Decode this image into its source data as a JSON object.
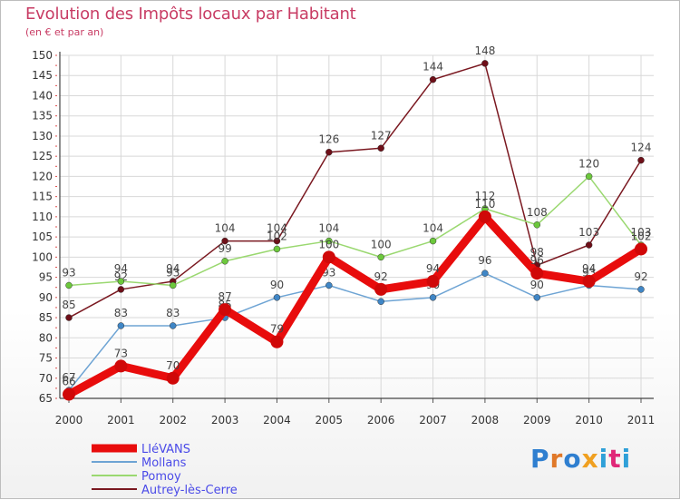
{
  "title": "Evolution des Impôts locaux par Habitant",
  "subtitle": "(en € et par an)",
  "logo": {
    "text": "Proxiti",
    "colors": [
      "#2f7fd0",
      "#e07828",
      "#2f7fd0",
      "#f0a020",
      "#2fa0d8",
      "#e02878",
      "#2fa0d8"
    ]
  },
  "chart_data": {
    "type": "line",
    "x": [
      "2000",
      "2001",
      "2002",
      "2003",
      "2004",
      "2005",
      "2006",
      "2007",
      "2008",
      "2009",
      "2010",
      "2011"
    ],
    "ylim": [
      65,
      150
    ],
    "yticks": [
      65,
      70,
      75,
      80,
      85,
      90,
      95,
      100,
      105,
      110,
      115,
      120,
      125,
      130,
      135,
      140,
      145,
      150
    ],
    "series": [
      {
        "name": "Autrey-lès-Cerre",
        "color": "#7a1820",
        "marker": "#6e0f18",
        "values": [
          85,
          92,
          94,
          104,
          104,
          126,
          127,
          144,
          148,
          98,
          103,
          124
        ]
      },
      {
        "name": "Pomoy",
        "color": "#9ad870",
        "marker": "#6cc83c",
        "values": [
          93,
          94,
          93,
          99,
          102,
          104,
          100,
          104,
          112,
          108,
          120,
          103
        ]
      },
      {
        "name": "Mollans",
        "color": "#6ea4d4",
        "marker": "#3f86c6",
        "values": [
          67,
          83,
          83,
          85,
          90,
          93,
          89,
          90,
          96,
          90,
          93,
          92
        ]
      },
      {
        "name": "LIéVANS",
        "color": "#e80c0c",
        "marker": "#d00808",
        "values": [
          66,
          73,
          70,
          87,
          79,
          100,
          92,
          94,
          110,
          96,
          94,
          102
        ]
      }
    ],
    "legend": [
      "LIéVANS",
      "Mollans",
      "Pomoy",
      "Autrey-lès-Cerre"
    ],
    "legend_position": "bottom-left"
  }
}
